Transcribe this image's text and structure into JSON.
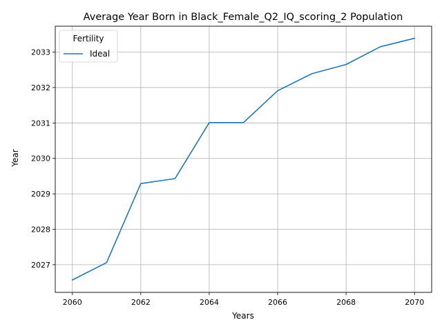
{
  "chart_data": {
    "type": "line",
    "title": "Average Year Born in Black_Female_Q2_IQ_scoring_2 Population",
    "xlabel": "Years",
    "ylabel": "Year",
    "x": [
      2060,
      2061,
      2062,
      2063,
      2064,
      2065,
      2066,
      2067,
      2068,
      2069,
      2070
    ],
    "series": [
      {
        "name": "Ideal",
        "color": "#1f77b4",
        "values": [
          2026.57,
          2027.06,
          2029.29,
          2029.43,
          2031.01,
          2031.01,
          2031.91,
          2032.39,
          2032.65,
          2033.15,
          2033.39
        ]
      }
    ],
    "xlim": [
      2059.5,
      2070.5
    ],
    "ylim": [
      2026.22,
      2033.73
    ],
    "xticks": [
      2060,
      2062,
      2064,
      2066,
      2068,
      2070
    ],
    "yticks": [
      2027,
      2028,
      2029,
      2030,
      2031,
      2032,
      2033
    ],
    "grid": true,
    "legend": {
      "title": "Fertility",
      "placement": "top-left"
    }
  }
}
